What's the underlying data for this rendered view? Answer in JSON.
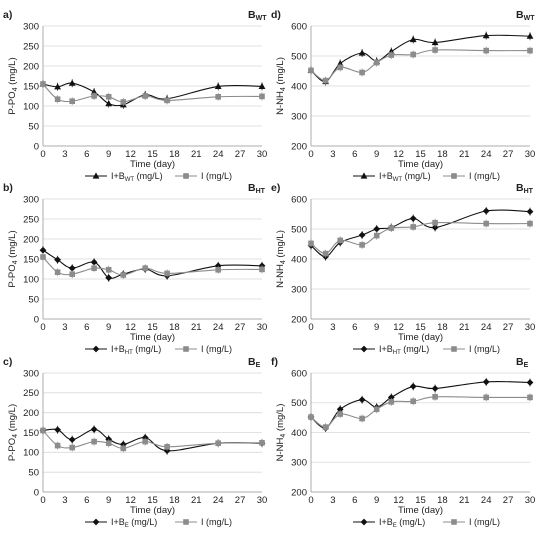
{
  "figure": {
    "caption_note": "",
    "time_ticks": [
      "0",
      "3",
      "6",
      "9",
      "12",
      "15",
      "18",
      "21",
      "24",
      "27",
      "30"
    ]
  },
  "chart_data": [
    {
      "panel_label": "a)",
      "tag_main": "B",
      "tag_sub": "WT",
      "type": "line",
      "xlabel": "Time (day)",
      "ylabel_main": "P-PO",
      "ylabel_sub": "4",
      "ylabel_unit": "(mg/L)",
      "xlim": [
        0,
        30
      ],
      "ylim": [
        0,
        300
      ],
      "yticks": [
        0,
        50,
        100,
        150,
        200,
        250,
        300
      ],
      "grid": true,
      "legend_position": "bottom-center",
      "series": [
        {
          "name": "I+B",
          "name_sub": "WT",
          "name_unit": "(mg/L)",
          "marker": "triangle",
          "color": "#111111",
          "x": [
            0,
            2,
            4,
            7,
            9,
            11,
            14,
            17,
            24,
            30
          ],
          "y": [
            155,
            148,
            157,
            135,
            106,
            103,
            128,
            118,
            149,
            149
          ]
        },
        {
          "name": "I",
          "name_sub": "",
          "name_unit": "(mg/L)",
          "marker": "square",
          "color": "#8c8c8c",
          "x": [
            0,
            2,
            4,
            7,
            9,
            11,
            14,
            17,
            24,
            30
          ],
          "y": [
            155,
            117,
            112,
            125,
            123,
            110,
            125,
            114,
            123,
            124
          ]
        }
      ]
    },
    {
      "panel_label": "d)",
      "tag_main": "B",
      "tag_sub": "WT",
      "type": "line",
      "xlabel": "Time (day)",
      "ylabel_main": "N-NH",
      "ylabel_sub": "4",
      "ylabel_unit": "(mg/L)",
      "xlim": [
        0,
        30
      ],
      "ylim": [
        200,
        600
      ],
      "yticks": [
        200,
        300,
        400,
        500,
        600
      ],
      "grid": true,
      "legend_position": "bottom-center",
      "series": [
        {
          "name": "I+B",
          "name_sub": "WT",
          "name_unit": "(mg/L)",
          "marker": "triangle",
          "color": "#111111",
          "x": [
            0,
            2,
            4,
            7,
            9,
            11,
            14,
            17,
            24,
            30
          ],
          "y": [
            452,
            415,
            475,
            510,
            483,
            515,
            555,
            545,
            568,
            566
          ]
        },
        {
          "name": "I",
          "name_sub": "",
          "name_unit": "(mg/L)",
          "marker": "square",
          "color": "#8c8c8c",
          "x": [
            0,
            2,
            4,
            7,
            9,
            11,
            14,
            17,
            24,
            30
          ],
          "y": [
            452,
            418,
            462,
            445,
            478,
            503,
            505,
            520,
            518,
            518
          ]
        }
      ]
    },
    {
      "panel_label": "b)",
      "tag_main": "B",
      "tag_sub": "HT",
      "type": "line",
      "xlabel": "Time (day)",
      "ylabel_main": "P-PO",
      "ylabel_sub": "4",
      "ylabel_unit": "(mg/L)",
      "xlim": [
        0,
        30
      ],
      "ylim": [
        0,
        300
      ],
      "yticks": [
        0,
        50,
        100,
        150,
        200,
        250,
        300
      ],
      "grid": true,
      "legend_position": "bottom-center",
      "series": [
        {
          "name": "I+B",
          "name_sub": "HT",
          "name_unit": "(mg/L)",
          "marker": "diamond",
          "color": "#111111",
          "x": [
            0,
            2,
            4,
            7,
            9,
            11,
            14,
            17,
            24,
            30
          ],
          "y": [
            172,
            148,
            127,
            142,
            103,
            112,
            125,
            108,
            133,
            133
          ]
        },
        {
          "name": "I",
          "name_sub": "",
          "name_unit": "(mg/L)",
          "marker": "square",
          "color": "#8c8c8c",
          "x": [
            0,
            2,
            4,
            7,
            9,
            11,
            14,
            17,
            24,
            30
          ],
          "y": [
            155,
            117,
            112,
            127,
            123,
            110,
            127,
            114,
            123,
            124
          ]
        }
      ]
    },
    {
      "panel_label": "e)",
      "tag_main": "B",
      "tag_sub": "HT",
      "type": "line",
      "xlabel": "Time (day)",
      "ylabel_main": "N-NH",
      "ylabel_sub": "4",
      "ylabel_unit": "(mg/L)",
      "xlim": [
        0,
        30
      ],
      "ylim": [
        200,
        600
      ],
      "yticks": [
        200,
        300,
        400,
        500,
        600
      ],
      "grid": true,
      "legend_position": "bottom-center",
      "series": [
        {
          "name": "I+B",
          "name_sub": "HT",
          "name_unit": "(mg/L)",
          "marker": "diamond",
          "color": "#111111",
          "x": [
            0,
            2,
            4,
            7,
            9,
            11,
            14,
            17,
            24,
            30
          ],
          "y": [
            445,
            408,
            455,
            480,
            500,
            505,
            535,
            505,
            560,
            558
          ]
        },
        {
          "name": "I",
          "name_sub": "",
          "name_unit": "(mg/L)",
          "marker": "square",
          "color": "#8c8c8c",
          "x": [
            0,
            2,
            4,
            7,
            9,
            11,
            14,
            17,
            24,
            30
          ],
          "y": [
            452,
            418,
            462,
            447,
            478,
            503,
            507,
            521,
            518,
            518
          ]
        }
      ]
    },
    {
      "panel_label": "c)",
      "tag_main": "B",
      "tag_sub": "E",
      "type": "line",
      "xlabel": "Time (day)",
      "ylabel_main": "P-PO",
      "ylabel_sub": "4",
      "ylabel_unit": "(mg/L)",
      "xlim": [
        0,
        30
      ],
      "ylim": [
        0,
        300
      ],
      "yticks": [
        0,
        50,
        100,
        150,
        200,
        250,
        300
      ],
      "grid": true,
      "legend_position": "bottom-center",
      "series": [
        {
          "name": "I+B",
          "name_sub": "E",
          "name_unit": "(mg/L)",
          "marker": "diamond",
          "color": "#111111",
          "x": [
            0,
            2,
            4,
            7,
            9,
            11,
            14,
            17,
            24,
            30
          ],
          "y": [
            155,
            157,
            132,
            158,
            133,
            120,
            137,
            104,
            123,
            123
          ]
        },
        {
          "name": "I",
          "name_sub": "",
          "name_unit": "(mg/L)",
          "marker": "square",
          "color": "#8c8c8c",
          "x": [
            0,
            2,
            4,
            7,
            9,
            11,
            14,
            17,
            24,
            30
          ],
          "y": [
            155,
            117,
            112,
            127,
            123,
            110,
            127,
            114,
            123,
            124
          ]
        }
      ]
    },
    {
      "panel_label": "f)",
      "tag_main": "B",
      "tag_sub": "E",
      "type": "line",
      "xlabel": "Time (day)",
      "ylabel_main": "N-NH",
      "ylabel_sub": "4",
      "ylabel_unit": "(mg/L)",
      "xlim": [
        0,
        30
      ],
      "ylim": [
        200,
        600
      ],
      "yticks": [
        200,
        300,
        400,
        500,
        600
      ],
      "grid": true,
      "legend_position": "bottom-center",
      "series": [
        {
          "name": "I+B",
          "name_sub": "E",
          "name_unit": "(mg/L)",
          "marker": "diamond",
          "color": "#111111",
          "x": [
            0,
            2,
            4,
            7,
            9,
            11,
            14,
            17,
            24,
            30
          ],
          "y": [
            452,
            415,
            478,
            510,
            485,
            518,
            555,
            548,
            570,
            568
          ]
        },
        {
          "name": "I",
          "name_sub": "",
          "name_unit": "(mg/L)",
          "marker": "square",
          "color": "#8c8c8c",
          "x": [
            0,
            2,
            4,
            7,
            9,
            11,
            14,
            17,
            24,
            30
          ],
          "y": [
            452,
            418,
            462,
            447,
            478,
            503,
            505,
            520,
            518,
            518
          ]
        }
      ]
    }
  ]
}
